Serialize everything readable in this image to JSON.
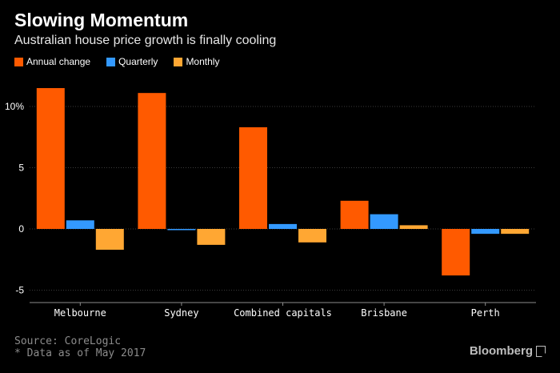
{
  "header": {
    "title": "Slowing Momentum",
    "subtitle": "Australian house price growth is finally cooling"
  },
  "footer": {
    "source": "Source: CoreLogic",
    "note": "* Data as of May 2017",
    "brand": "Bloomberg"
  },
  "colors": {
    "annual": "#ff5a00",
    "quarterly": "#3399ff",
    "monthly": "#ffa733",
    "grid": "#3a3a3a",
    "axis_text": "#ffffff"
  },
  "chart_data": {
    "type": "bar",
    "title": "Slowing Momentum",
    "subtitle": "Australian house price growth is finally cooling",
    "categories": [
      "Melbourne",
      "Sydney",
      "Combined capitals",
      "Brisbane",
      "Perth"
    ],
    "series": [
      {
        "name": "Annual change",
        "values": [
          11.5,
          11.1,
          8.3,
          2.3,
          -3.8
        ]
      },
      {
        "name": "Quarterly",
        "values": [
          0.7,
          -0.1,
          0.4,
          1.2,
          -0.4
        ]
      },
      {
        "name": "Monthly",
        "values": [
          -1.7,
          -1.3,
          -1.1,
          0.3,
          -0.4
        ]
      }
    ],
    "yticks": [
      {
        "value": 10,
        "label": "10%"
      },
      {
        "value": 5,
        "label": "5"
      },
      {
        "value": 0,
        "label": "0"
      },
      {
        "value": -5,
        "label": "-5"
      }
    ],
    "ylim": [
      -6,
      12
    ],
    "grid": true,
    "legend": "top-left"
  }
}
